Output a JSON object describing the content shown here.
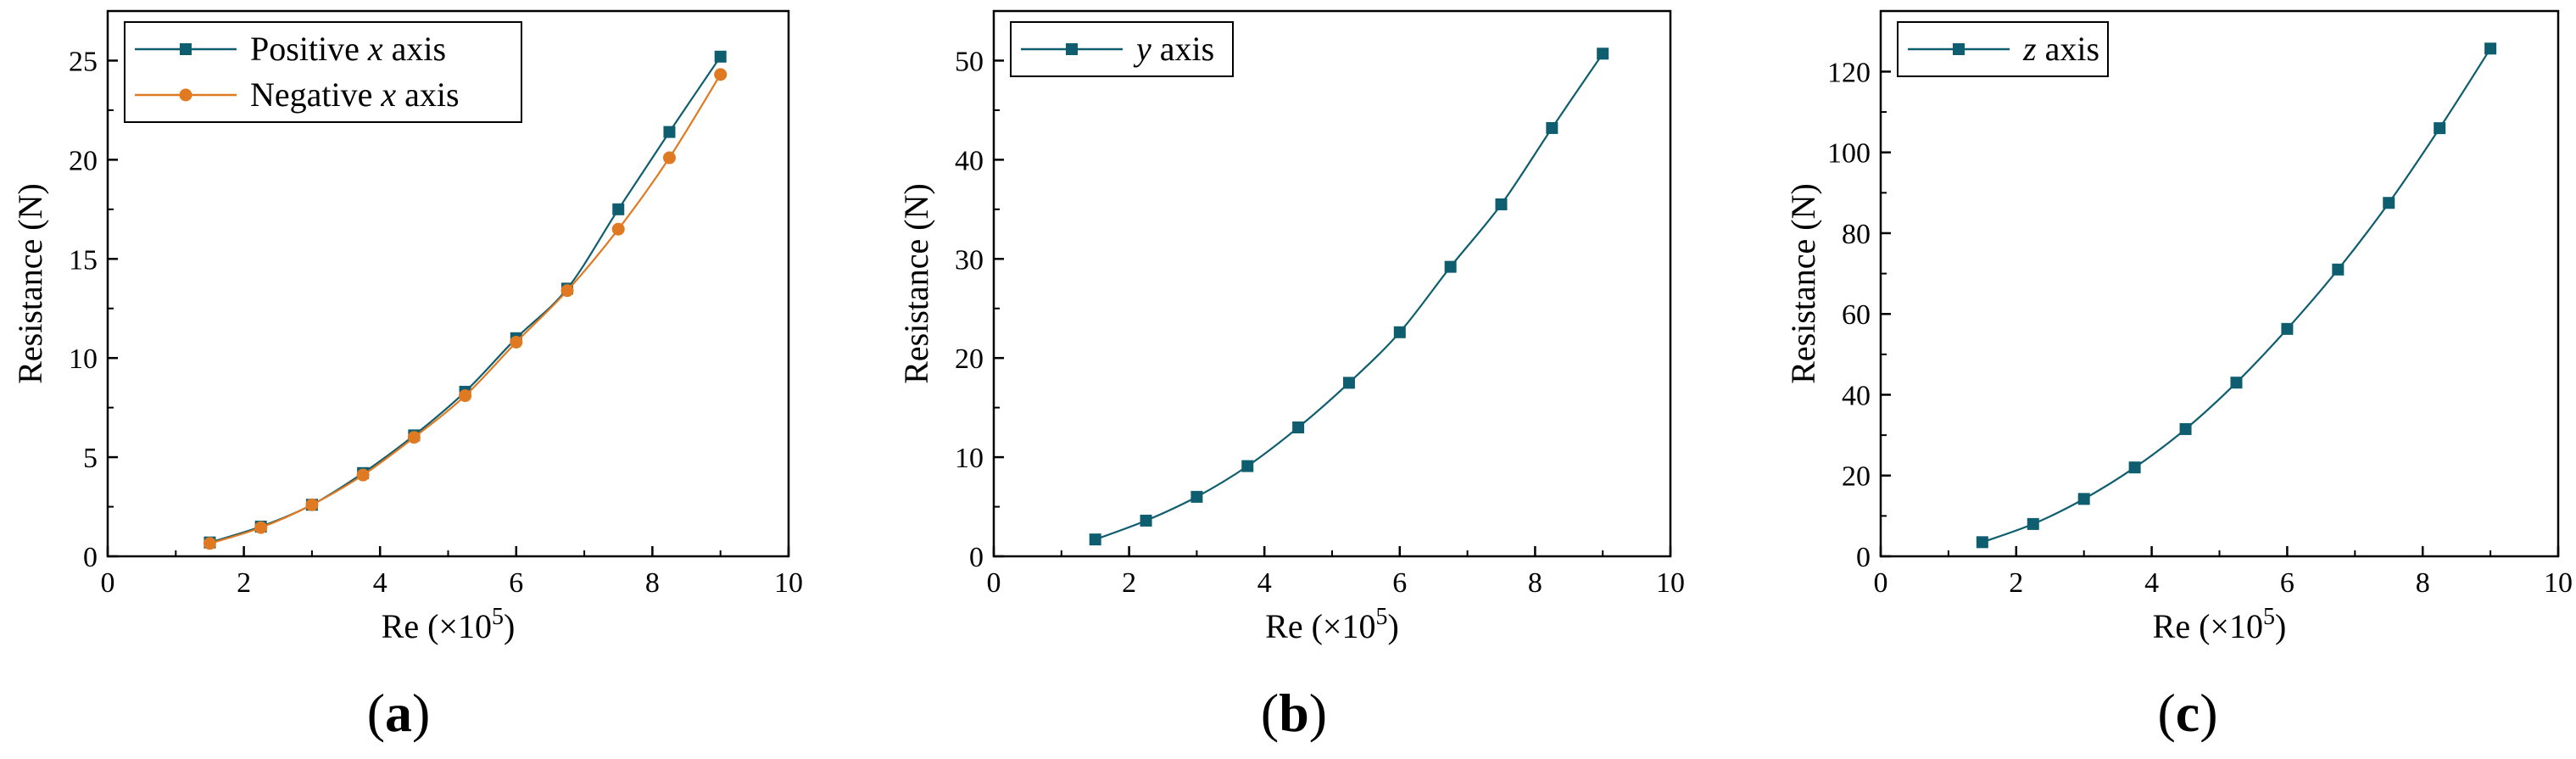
{
  "chart_data": [
    {
      "type": "line",
      "panel_label": "a",
      "xlabel": "Re (×10⁵)",
      "ylabel": "Resistance (N)",
      "xlim": [
        0,
        10
      ],
      "ylim": [
        0,
        27.5
      ],
      "xticks": [
        0,
        2,
        4,
        6,
        8,
        10
      ],
      "yticks": [
        0,
        5,
        10,
        15,
        20,
        25
      ],
      "grid": false,
      "legend_position": "top-left",
      "series": [
        {
          "name": "Positive x axis",
          "legend_parts": [
            "Positive ",
            "x",
            " axis"
          ],
          "color": "#0e5e6f",
          "marker": "square",
          "x": [
            1.5,
            2.25,
            3.0,
            3.75,
            4.5,
            5.25,
            6.0,
            6.75,
            7.5,
            8.25,
            9.0
          ],
          "y": [
            0.7,
            1.5,
            2.6,
            4.2,
            6.1,
            8.3,
            11.0,
            13.5,
            17.5,
            21.4,
            25.2
          ]
        },
        {
          "name": "Negative x axis",
          "legend_parts": [
            "Negative ",
            "x",
            " axis"
          ],
          "color": "#e07a22",
          "marker": "circle",
          "x": [
            1.5,
            2.25,
            3.0,
            3.75,
            4.5,
            5.25,
            6.0,
            6.75,
            7.5,
            8.25,
            9.0
          ],
          "y": [
            0.65,
            1.45,
            2.6,
            4.1,
            6.0,
            8.1,
            10.8,
            13.4,
            16.5,
            20.1,
            24.3
          ]
        }
      ]
    },
    {
      "type": "line",
      "panel_label": "b",
      "xlabel": "Re (×10⁵)",
      "ylabel": "Resistance (N)",
      "xlim": [
        0,
        10
      ],
      "ylim": [
        0,
        55
      ],
      "xticks": [
        0,
        2,
        4,
        6,
        8,
        10
      ],
      "yticks": [
        0,
        10,
        20,
        30,
        40,
        50
      ],
      "grid": false,
      "legend_position": "top-left",
      "series": [
        {
          "name": "y axis",
          "legend_parts": [
            "",
            "y",
            " axis"
          ],
          "color": "#0e5e6f",
          "marker": "square",
          "x": [
            1.5,
            2.25,
            3.0,
            3.75,
            4.5,
            5.25,
            6.0,
            6.75,
            7.5,
            8.25,
            9.0
          ],
          "y": [
            1.7,
            3.6,
            6.0,
            9.1,
            13.0,
            17.5,
            22.6,
            29.2,
            35.5,
            43.2,
            50.7
          ]
        }
      ]
    },
    {
      "type": "line",
      "panel_label": "c",
      "xlabel": "Re (×10⁵)",
      "ylabel": "Resistance (N)",
      "xlim": [
        0,
        10
      ],
      "ylim": [
        0,
        135
      ],
      "xticks": [
        0,
        2,
        4,
        6,
        8,
        10
      ],
      "yticks": [
        0,
        20,
        40,
        60,
        80,
        100,
        120
      ],
      "grid": false,
      "legend_position": "top-left",
      "series": [
        {
          "name": "z axis",
          "legend_parts": [
            "",
            "z",
            " axis"
          ],
          "color": "#0e5e6f",
          "marker": "square",
          "x": [
            1.5,
            2.25,
            3.0,
            3.75,
            4.5,
            5.25,
            6.0,
            6.75,
            7.5,
            8.25,
            9.0
          ],
          "y": [
            3.5,
            8.0,
            14.2,
            22.0,
            31.5,
            43.0,
            56.3,
            71.0,
            87.5,
            106.0,
            125.7
          ]
        }
      ]
    }
  ]
}
